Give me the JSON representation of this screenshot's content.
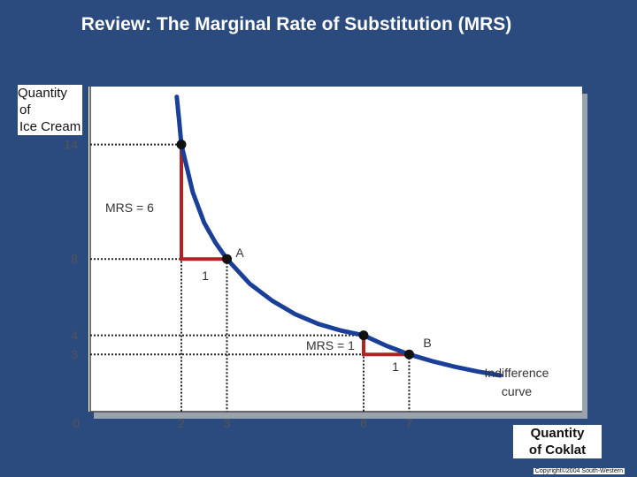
{
  "title": "Review: The Marginal Rate of Substitution (MRS)",
  "copyright": "Copyright©2004 South-Western",
  "chart_data": {
    "type": "line",
    "title": "Review: The Marginal Rate of Substitution (MRS)",
    "xlabel": [
      "Quantity",
      "of Coklat"
    ],
    "ylabel": [
      "Quantity",
      "of",
      "Ice Cream"
    ],
    "xlim": [
      0,
      9.5
    ],
    "ylim": [
      0,
      16
    ],
    "x_ticks": [
      {
        "value": 0,
        "label": "0"
      },
      {
        "value": 2,
        "label": "2"
      },
      {
        "value": 3,
        "label": "3"
      },
      {
        "value": 6,
        "label": "6"
      },
      {
        "value": 7,
        "label": "7"
      }
    ],
    "y_ticks": [
      {
        "value": 14,
        "label": "14"
      },
      {
        "value": 8,
        "label": "8"
      },
      {
        "value": 4,
        "label": "4"
      },
      {
        "value": 3,
        "label": "3"
      }
    ],
    "series": [
      {
        "name": "Indifference curve",
        "label": [
          "Indifference",
          "curve"
        ],
        "color": "#1a3f99",
        "x": [
          1.9,
          1.95,
          2,
          2.25,
          2.5,
          2.75,
          3,
          3.5,
          4,
          4.5,
          5,
          5.5,
          6,
          6.5,
          7,
          7.5,
          8,
          8.5,
          9
        ],
        "y": [
          16.5,
          15.3,
          14,
          11.5,
          9.9,
          8.85,
          8,
          6.7,
          5.8,
          5.1,
          4.6,
          4.25,
          4,
          3.45,
          3,
          2.65,
          2.35,
          2.1,
          1.9
        ]
      }
    ],
    "points": [
      {
        "x": 2,
        "y": 14,
        "label": ""
      },
      {
        "x": 3,
        "y": 8,
        "label": "A"
      },
      {
        "x": 6,
        "y": 4,
        "label": ""
      },
      {
        "x": 7,
        "y": 3,
        "label": "B"
      }
    ],
    "mrs_steps": [
      {
        "from": [
          2,
          14
        ],
        "corner": [
          2,
          8
        ],
        "to": [
          3,
          8
        ],
        "mrs_label": "MRS = 6",
        "run_label": "1",
        "color": "#b22222"
      },
      {
        "from": [
          6,
          4
        ],
        "corner": [
          6,
          3
        ],
        "to": [
          7,
          3
        ],
        "mrs_label": "MRS = 1",
        "run_label": "1",
        "color": "#b22222"
      }
    ]
  }
}
